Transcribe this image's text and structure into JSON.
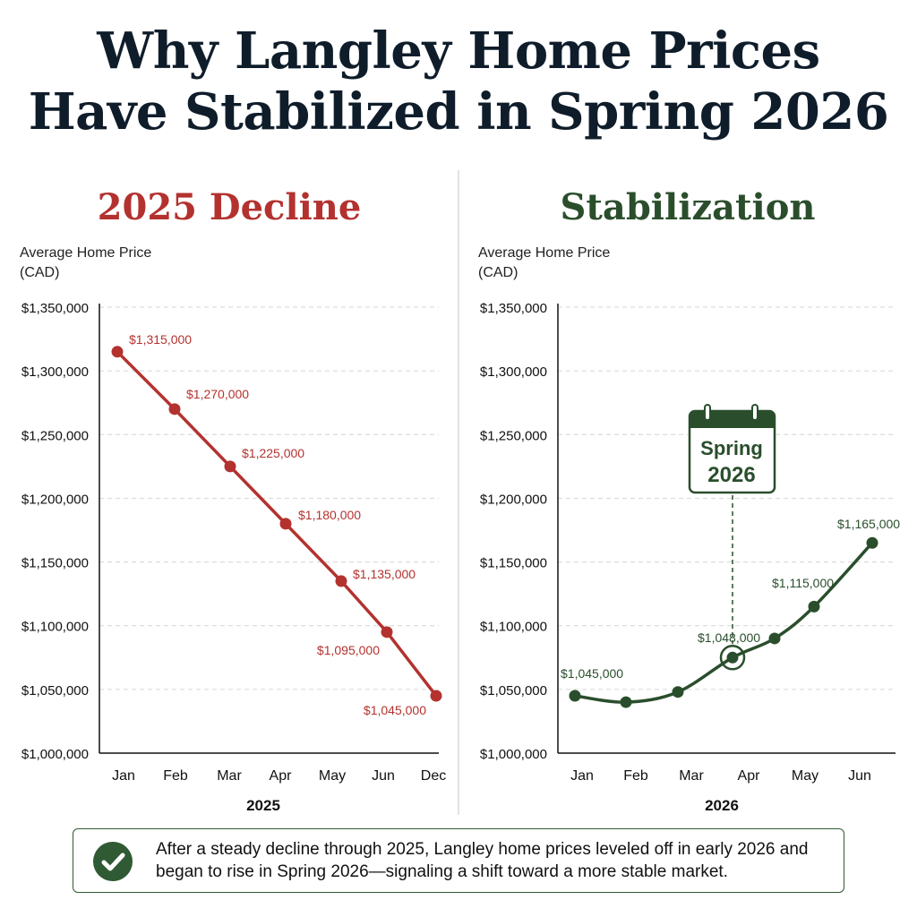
{
  "title_line1": "Why Langley Home Prices",
  "title_line2": "Have Stabilized in Spring 2026",
  "summary": "After a steady decline through 2025, Langley home prices leveled off in early 2026 and began to rise in Spring 2026—signaling a shift toward a more stable market.",
  "colors": {
    "decline": "#b3322f",
    "stable": "#2a4e2c",
    "grid": "#d6d6d6",
    "title": "#0f1d2b"
  },
  "icons": [
    "calendar-icon",
    "check-icon"
  ],
  "chart_data": [
    {
      "type": "line",
      "title": "2025 Decline",
      "ylabel_line1": "Average Home Price",
      "ylabel_line2": "(CAD)",
      "xlabel": "2025",
      "categories": [
        "Jan",
        "Feb",
        "Mar",
        "Apr",
        "May",
        "Jun",
        "Dec"
      ],
      "values": [
        1315000,
        1270000,
        1225000,
        1180000,
        1135000,
        1095000,
        1045000
      ],
      "data_labels": [
        "$1,315,000",
        "$1,270,000",
        "$1,225,000",
        "$1,180,000",
        "$1,135,000",
        "$1,095,000",
        "$1,045,000"
      ],
      "ylim": [
        1000000,
        1350000
      ],
      "yticks": [
        "$1,000,000",
        "$1,050,000",
        "$1,100,000",
        "$1,150,000",
        "$1,200,000",
        "$1,250,000",
        "$1,300,000",
        "$1,350,000"
      ],
      "grid": true,
      "color": "#b3322f"
    },
    {
      "type": "line",
      "title": "Stabilization",
      "ylabel_line1": "Average Home Price",
      "ylabel_line2": "(CAD)",
      "xlabel": "2026",
      "categories": [
        "Jan",
        "Feb",
        "Mar",
        "Apr",
        "May",
        "Jun"
      ],
      "x": [
        "Jan",
        "Feb",
        "Mar",
        "Mar-Apr",
        "Apr-May",
        "May",
        "Jun"
      ],
      "values": [
        1045000,
        1040000,
        1048000,
        1075000,
        1090000,
        1115000,
        1165000
      ],
      "data_labels": [
        "$1,045,000",
        "",
        "$1,048,000",
        "$1,075,000",
        "",
        "$1,115,000",
        "$1,165,000"
      ],
      "ylim": [
        1000000,
        1350000
      ],
      "yticks": [
        "$1,000,000",
        "$1,050,000",
        "$1,100,000",
        "$1,150,000",
        "$1,200,000",
        "$1,250,000",
        "$1,300,000",
        "$1,350,000"
      ],
      "grid": true,
      "color": "#2a4e2c",
      "annotation": {
        "line1": "Spring",
        "line2": "2026",
        "highlight_point": "Mar-Apr"
      }
    }
  ]
}
